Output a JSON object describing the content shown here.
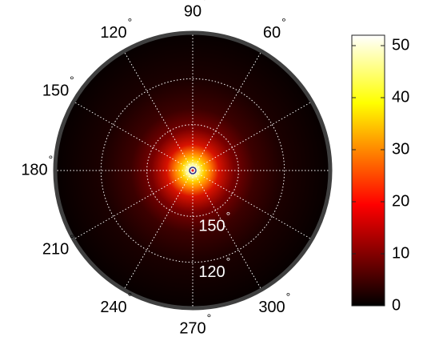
{
  "chart_data": {
    "type": "heatmap",
    "projection": "polar",
    "angle_ticks": [
      {
        "deg": 0,
        "label": ""
      },
      {
        "deg": 30,
        "label": ""
      },
      {
        "deg": 60,
        "label": "60"
      },
      {
        "deg": 90,
        "label": "90"
      },
      {
        "deg": 120,
        "label": "120"
      },
      {
        "deg": 150,
        "label": "150"
      },
      {
        "deg": 180,
        "label": "180"
      },
      {
        "deg": 210,
        "label": "210"
      },
      {
        "deg": 240,
        "label": "240"
      },
      {
        "deg": 270,
        "label": "270"
      },
      {
        "deg": 300,
        "label": "300"
      },
      {
        "deg": 330,
        "label": ""
      }
    ],
    "degree_symbol": "°",
    "radial_ticks": [
      {
        "value": 180,
        "label": ""
      },
      {
        "value": 150,
        "label": "150"
      },
      {
        "value": 120,
        "label": "120"
      }
    ],
    "radial_range": [
      90,
      180
    ],
    "radial_reversed": true,
    "grid": true,
    "peak_value": 52,
    "colormap": "hot",
    "colorbar": {
      "location": "right",
      "range": [
        0,
        52
      ],
      "ticks": [
        {
          "value": 0,
          "label": "0"
        },
        {
          "value": 10,
          "label": "10"
        },
        {
          "value": 20,
          "label": "20"
        },
        {
          "value": 30,
          "label": "30"
        },
        {
          "value": 40,
          "label": "40"
        },
        {
          "value": 50,
          "label": "50"
        }
      ]
    },
    "colors": {
      "background": "#000000",
      "border": "#404040",
      "grid": "#ffffff",
      "text": "#000000"
    }
  }
}
